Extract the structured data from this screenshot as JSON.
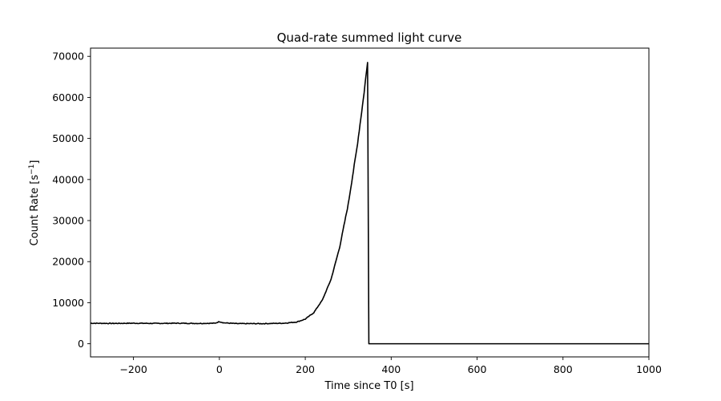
{
  "chart_data": {
    "type": "line",
    "title": "Quad-rate summed light curve",
    "xlabel": "Time since T0 [s]",
    "ylabel_base": "Count Rate [s",
    "ylabel_exp": "−1",
    "ylabel_close": "]",
    "xlim": [
      -300,
      1000
    ],
    "ylim": [
      -3200,
      72000
    ],
    "xticks": [
      -200,
      0,
      200,
      400,
      600,
      800,
      1000
    ],
    "xtick_labels": [
      "−200",
      "0",
      "200",
      "400",
      "600",
      "800",
      "1000"
    ],
    "yticks": [
      0,
      10000,
      20000,
      30000,
      40000,
      50000,
      60000,
      70000
    ],
    "ytick_labels": [
      "0",
      "10000",
      "20000",
      "30000",
      "40000",
      "50000",
      "60000",
      "70000"
    ],
    "grid": false,
    "line_color": "#000000",
    "series": [
      {
        "x": [
          -300,
          -250,
          -200,
          -150,
          -100,
          -50,
          -10,
          0,
          10,
          40,
          100,
          150,
          180,
          200,
          220,
          240,
          260,
          280,
          300,
          320,
          335,
          345,
          348,
          1000
        ],
        "y": [
          5000,
          4950,
          5000,
          4950,
          5000,
          4950,
          5000,
          5400,
          5100,
          4900,
          4900,
          5000,
          5300,
          6000,
          7600,
          10700,
          15700,
          23500,
          34000,
          47500,
          59500,
          68500,
          0,
          0
        ]
      }
    ]
  }
}
